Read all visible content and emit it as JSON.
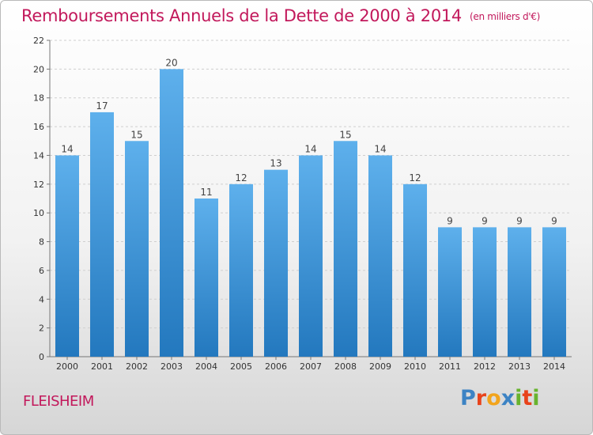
{
  "title": "Remboursements Annuels de la Dette de 2000 à 2014",
  "unit": "(en milliers d'€)",
  "commune": "FLEISHEIM",
  "logo": {
    "letters": [
      "P",
      "r",
      "o",
      "x",
      "i",
      "t",
      "i"
    ],
    "colors": [
      "#3c83c4",
      "#e8431b",
      "#f2a41c",
      "#3c83c4",
      "#68b32e",
      "#e8431b",
      "#68b32e"
    ]
  },
  "colors": {
    "title": "#c2185b",
    "bar_light": "#5eb0ec",
    "bar_dark": "#2378be"
  },
  "chart_data": {
    "type": "bar",
    "categories": [
      "2000",
      "2001",
      "2002",
      "2003",
      "2004",
      "2005",
      "2006",
      "2007",
      "2008",
      "2009",
      "2010",
      "2011",
      "2012",
      "2013",
      "2014"
    ],
    "values": [
      14,
      17,
      15,
      20,
      11,
      12,
      13,
      14,
      15,
      14,
      12,
      9,
      9,
      9,
      9
    ],
    "data_labels": [
      "14",
      "17",
      "15",
      "20",
      "11",
      "12",
      "13",
      "14",
      "15",
      "14",
      "12",
      "9",
      "9",
      "9",
      "9"
    ],
    "y_ticks": [
      "0",
      "2",
      "4",
      "6",
      "8",
      "10",
      "12",
      "14",
      "16",
      "18",
      "20",
      "22"
    ],
    "ylim": [
      0,
      22
    ],
    "xlabel": "",
    "ylabel": "",
    "grid": true
  }
}
